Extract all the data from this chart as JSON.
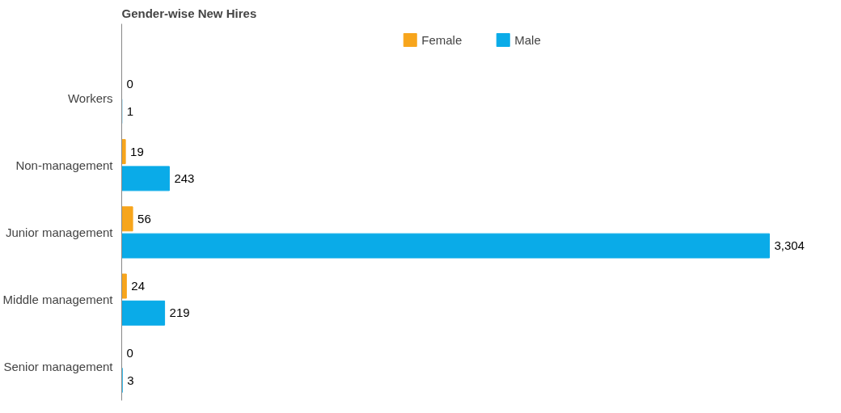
{
  "chart_data": {
    "type": "bar",
    "orientation": "horizontal",
    "title": "Gender-wise New Hires",
    "categories": [
      "Workers",
      "Non-management",
      "Junior management",
      "Middle management",
      "Senior management"
    ],
    "series": [
      {
        "name": "Female",
        "color": "#f7a51c",
        "values": [
          0,
          19,
          56,
          24,
          0
        ],
        "value_labels": [
          "0",
          "19",
          "56",
          "24",
          "0"
        ]
      },
      {
        "name": "Male",
        "color": "#0aabe8",
        "values": [
          1,
          243,
          3304,
          219,
          3
        ],
        "value_labels": [
          "1",
          "243",
          "3,304",
          "219",
          "3"
        ]
      }
    ],
    "legend": "top",
    "grid": false
  }
}
